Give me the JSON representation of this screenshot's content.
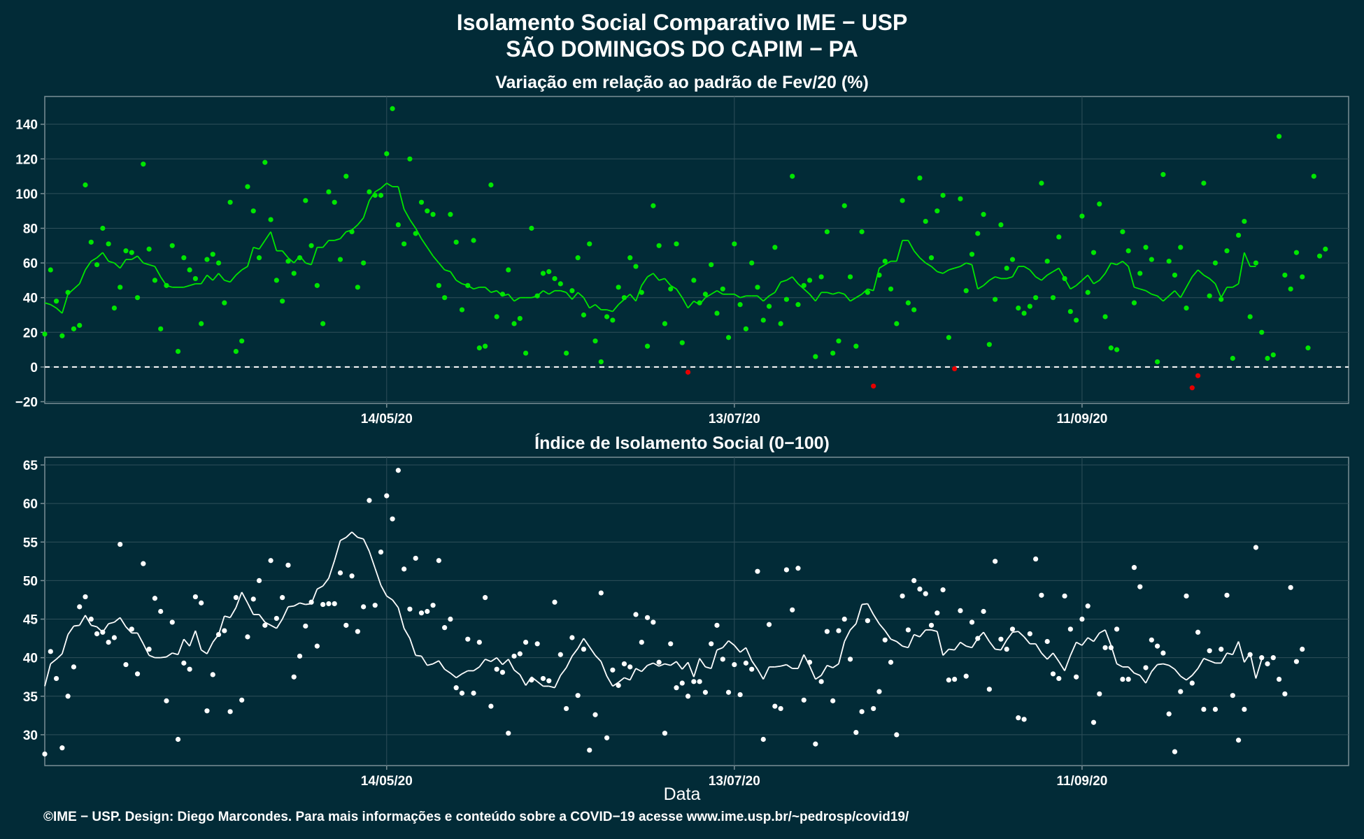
{
  "title_line1": "Isolamento Social Comparativo IME − USP",
  "title_line2": "SÃO DOMINGOS DO CAPIM − PA",
  "xlabel": "Data",
  "footer": "©IME − USP. Design: Diego Marcondes. Para mais informações e conteúdo sobre a COVID−19 acesse www.ime.usp.br/~pedrosp/covid19/",
  "colors": {
    "background": "#022b37",
    "positive_points": "#00e600",
    "negative_points": "#e60000",
    "index_points": "#ffffff",
    "grid": "#2f4f5a"
  },
  "chart_data": [
    {
      "type": "scatter",
      "title": "Variação em relação ao padrão de Fev/20 (%)",
      "x_tick_labels": [
        "14/05/20",
        "13/07/20",
        "11/09/20"
      ],
      "x_tick_day_index": [
        54,
        114,
        174
      ],
      "y_ticks": [
        -20,
        0,
        20,
        40,
        60,
        80,
        100,
        120,
        140
      ],
      "ylim": [
        -21,
        156
      ],
      "reference_line": 0,
      "x_range_days": [
        -5,
        220
      ],
      "points_day_index": [
        -5,
        -4,
        -3,
        -2,
        -1,
        0,
        1,
        2,
        3,
        4,
        5,
        6,
        7,
        8,
        9,
        10,
        11,
        12,
        13,
        14,
        15,
        16,
        17,
        18,
        19,
        20,
        21,
        22,
        23,
        24,
        25,
        26,
        27,
        28,
        29,
        30,
        31,
        32,
        33,
        34,
        35,
        36,
        37,
        38,
        39,
        40,
        41,
        42,
        43,
        44,
        45,
        46,
        47,
        48,
        49,
        50,
        51,
        52,
        53,
        54,
        55,
        56,
        57,
        58,
        59,
        60,
        61,
        62,
        63,
        64,
        65,
        66,
        67,
        68,
        69,
        70,
        71,
        72,
        73,
        74,
        75,
        76,
        77,
        78,
        79,
        80,
        81,
        82,
        83,
        84,
        85,
        86,
        87,
        88,
        89,
        90,
        91,
        92,
        93,
        94,
        95,
        96,
        97,
        98,
        99,
        100,
        101,
        102,
        103,
        104,
        105,
        106,
        107,
        108,
        109,
        110,
        111,
        112,
        113,
        114,
        115,
        116,
        117,
        118,
        119,
        120,
        121,
        122,
        123,
        124,
        125,
        126,
        127,
        128,
        129,
        130,
        131,
        132,
        133,
        134,
        135,
        136,
        137,
        138,
        139,
        140,
        141,
        142,
        143,
        144,
        145,
        146,
        147,
        148,
        149,
        150,
        151,
        152,
        153,
        154,
        155,
        156,
        157,
        158,
        159,
        160,
        161,
        162,
        163,
        164,
        165,
        166,
        167,
        168,
        169,
        170,
        171,
        172,
        173,
        174,
        175,
        176,
        177,
        178,
        179,
        180,
        181,
        182,
        183,
        184,
        185,
        186,
        187,
        188,
        189,
        190,
        191,
        192,
        193,
        194,
        195,
        196,
        197,
        198,
        199,
        200,
        201,
        202,
        203,
        204,
        205,
        206,
        207,
        208,
        209,
        210,
        211,
        212,
        213,
        214,
        215,
        216,
        217,
        218,
        219,
        220
      ],
      "values": [
        19,
        56,
        38,
        18,
        43,
        22,
        24,
        105,
        72,
        59,
        80,
        71,
        34,
        46,
        67,
        66,
        40,
        117,
        68,
        50,
        22,
        47,
        70,
        9,
        63,
        56,
        51,
        25,
        62,
        65,
        60,
        37,
        95,
        9,
        15,
        104,
        90,
        63,
        118,
        85,
        50,
        38,
        61,
        54,
        63,
        96,
        70,
        47,
        25,
        101,
        95,
        62,
        110,
        78,
        46,
        60,
        101,
        99,
        99,
        123,
        149,
        82,
        71,
        120,
        77,
        95,
        90,
        88,
        47,
        40,
        88,
        72,
        33,
        47,
        73,
        11,
        12,
        105,
        29,
        42,
        56,
        25,
        28,
        8,
        80,
        41,
        54,
        55,
        51,
        48,
        8,
        44,
        63,
        30,
        71,
        15,
        3,
        29,
        27,
        46,
        40,
        63,
        58,
        43,
        12,
        93,
        70,
        25,
        45,
        71,
        14,
        -3,
        50,
        37,
        42,
        59,
        31,
        45,
        17,
        71,
        36,
        22,
        60,
        46,
        27,
        35,
        69,
        25,
        39,
        110,
        36,
        47,
        50,
        6,
        52,
        78,
        8,
        15,
        93,
        52,
        12,
        78,
        43,
        -11,
        53,
        61,
        45,
        25,
        96,
        37,
        33,
        109,
        84,
        63,
        90,
        99,
        17,
        -1,
        97,
        44,
        65,
        77,
        88,
        13,
        39,
        82,
        57,
        62,
        34,
        31,
        35,
        40,
        106,
        61,
        40,
        75,
        51,
        32,
        27,
        87,
        43,
        66,
        94,
        29,
        11,
        10,
        78,
        67,
        37,
        54,
        69,
        62,
        3,
        111,
        61,
        53,
        69,
        34,
        -12,
        -5,
        106,
        41,
        60,
        39,
        67,
        5,
        76,
        84,
        29,
        60,
        20,
        5,
        7,
        133,
        53,
        45,
        66,
        52,
        11,
        110,
        64,
        68
      ],
      "moving_average": [
        37,
        36,
        34,
        31,
        42,
        45,
        48,
        56,
        61,
        63,
        66,
        61,
        60,
        57,
        62,
        62,
        64,
        60,
        59,
        58,
        52,
        47,
        46,
        46,
        46,
        47,
        48,
        48,
        53,
        50,
        54,
        50,
        49,
        53,
        56,
        58,
        69,
        68,
        73,
        78,
        67,
        67,
        63,
        60,
        64,
        60,
        59,
        69,
        69,
        73,
        73,
        74,
        78,
        79,
        82,
        86,
        96,
        101,
        103,
        106,
        104,
        104,
        91,
        85,
        80,
        74,
        69,
        64,
        60,
        56,
        55,
        50,
        48,
        47,
        45,
        46,
        46,
        43,
        44,
        41,
        42,
        38,
        40,
        40,
        40,
        41,
        44,
        42,
        44,
        44,
        43,
        39,
        43,
        40,
        34,
        36,
        33,
        33,
        32,
        36,
        39,
        42,
        38,
        47,
        52,
        54,
        50,
        51,
        47,
        45,
        40,
        34,
        38,
        36,
        40,
        42,
        44,
        42,
        42,
        42,
        40,
        41,
        41,
        41,
        38,
        41,
        43,
        49,
        50,
        52,
        48,
        45,
        42,
        38,
        43,
        43,
        42,
        43,
        42,
        38,
        40,
        42,
        45,
        44,
        57,
        59,
        61,
        61,
        73,
        73,
        67,
        63,
        60,
        58,
        55,
        54,
        56,
        57,
        58,
        60,
        59,
        45,
        47,
        50,
        52,
        51,
        51,
        52,
        58,
        58,
        56,
        52,
        50,
        53,
        55,
        57,
        51,
        45,
        47,
        50,
        53,
        48,
        50,
        54,
        60,
        59,
        61,
        58,
        46,
        45,
        44,
        42,
        41,
        38,
        41,
        44,
        40,
        46,
        52,
        56,
        53,
        51,
        48,
        40,
        46,
        46,
        48,
        66,
        58,
        58
      ]
    },
    {
      "type": "scatter",
      "title": "Índice de Isolamento Social (0−100)",
      "x_tick_labels": [
        "14/05/20",
        "13/07/20",
        "11/09/20"
      ],
      "x_tick_day_index": [
        54,
        114,
        174
      ],
      "y_ticks": [
        30,
        35,
        40,
        45,
        50,
        55,
        60,
        65
      ],
      "ylim": [
        26,
        66
      ],
      "x_range_days": [
        -5,
        220
      ],
      "points_day_index": [
        -5,
        -4,
        -3,
        -2,
        -1,
        0,
        1,
        2,
        3,
        4,
        5,
        6,
        7,
        8,
        9,
        10,
        11,
        12,
        13,
        14,
        15,
        16,
        17,
        18,
        19,
        20,
        21,
        22,
        23,
        24,
        25,
        26,
        27,
        28,
        29,
        30,
        31,
        32,
        33,
        34,
        35,
        36,
        37,
        38,
        39,
        40,
        41,
        42,
        43,
        44,
        45,
        46,
        47,
        48,
        49,
        50,
        51,
        52,
        53,
        54,
        55,
        56,
        57,
        58,
        59,
        60,
        61,
        62,
        63,
        64,
        65,
        66,
        67,
        68,
        69,
        70,
        71,
        72,
        73,
        74,
        75,
        76,
        77,
        78,
        79,
        80,
        81,
        82,
        83,
        84,
        85,
        86,
        87,
        88,
        89,
        90,
        91,
        92,
        93,
        94,
        95,
        96,
        97,
        98,
        99,
        100,
        101,
        102,
        103,
        104,
        105,
        106,
        107,
        108,
        109,
        110,
        111,
        112,
        113,
        114,
        115,
        116,
        117,
        118,
        119,
        120,
        121,
        122,
        123,
        124,
        125,
        126,
        127,
        128,
        129,
        130,
        131,
        132,
        133,
        134,
        135,
        136,
        137,
        138,
        139,
        140,
        141,
        142,
        143,
        144,
        145,
        146,
        147,
        148,
        149,
        150,
        151,
        152,
        153,
        154,
        155,
        156,
        157,
        158,
        159,
        160,
        161,
        162,
        163,
        164,
        165,
        166,
        167,
        168,
        169,
        170,
        171,
        172,
        173,
        174,
        175,
        176,
        177,
        178,
        179,
        180,
        181,
        182,
        183,
        184,
        185,
        186,
        187,
        188,
        189,
        190,
        191,
        192,
        193,
        194,
        195,
        196,
        197,
        198,
        199,
        200,
        201,
        202,
        203,
        204,
        205,
        206,
        207,
        208,
        209,
        210,
        211,
        212,
        213,
        214,
        215,
        216,
        217,
        218,
        219,
        220
      ],
      "values": [
        27.5,
        40.8,
        37.3,
        28.3,
        35.0,
        38.8,
        46.6,
        47.9,
        45.0,
        43.1,
        43.3,
        42.0,
        42.6,
        54.7,
        39.1,
        43.7,
        37.9,
        52.2,
        41.1,
        47.7,
        46.0,
        34.4,
        44.6,
        29.4,
        39.3,
        38.5,
        47.9,
        47.1,
        33.1,
        37.8,
        43.0,
        43.5,
        33.0,
        47.8,
        34.5,
        42.7,
        47.6,
        50.0,
        44.2,
        52.6,
        45.1,
        47.8,
        52.0,
        37.5,
        40.2,
        44.1,
        47.2,
        41.5,
        46.9,
        47.0,
        47.0,
        51.0,
        44.2,
        50.6,
        43.4,
        46.6,
        60.4,
        46.8,
        53.7,
        61.0,
        58.0,
        64.3,
        51.5,
        46.3,
        52.9,
        45.8,
        46.0,
        46.8,
        52.6,
        43.9,
        45.0,
        36.1,
        35.4,
        42.4,
        35.4,
        42.0,
        47.8,
        33.7,
        38.5,
        38.1,
        30.2,
        40.2,
        40.5,
        42.0,
        37.1,
        41.8,
        37.3,
        37.0,
        47.2,
        40.4,
        33.4,
        42.6,
        35.1,
        41.1,
        28.0,
        32.6,
        48.4,
        29.6,
        38.4,
        36.4,
        39.2,
        38.8,
        45.6,
        42.0,
        45.2,
        44.6,
        39.4,
        30.2,
        41.8,
        36.1,
        36.7,
        35.0,
        36.9,
        36.9,
        35.5,
        41.8,
        44.2,
        39.8,
        35.5,
        39.1,
        35.2,
        39.3,
        38.5,
        51.2,
        29.4,
        44.3,
        33.7,
        33.4,
        51.4,
        46.2,
        51.6,
        34.5,
        39.4,
        28.8,
        36.9,
        43.4,
        34.4,
        43.5,
        45.0,
        39.8,
        30.3,
        33.0,
        44.8,
        33.4,
        35.6,
        42.3,
        39.4,
        30.0,
        48.0,
        43.6,
        50.0,
        48.9,
        48.3,
        44.2,
        45.8,
        48.8,
        37.1,
        37.2,
        46.1,
        37.6,
        44.6,
        42.5,
        46.0,
        35.9,
        52.5,
        42.4,
        41.1,
        43.7,
        32.2,
        32.0,
        43.1,
        52.8,
        48.1,
        42.1,
        37.9,
        37.3,
        48.0,
        43.7,
        37.5,
        45.0,
        46.7,
        31.6,
        35.3,
        41.3,
        41.3,
        43.7,
        37.2,
        37.2,
        51.7,
        49.2,
        38.7,
        42.3,
        41.5,
        40.6,
        32.7,
        27.8,
        35.6,
        48.0,
        36.7,
        43.3,
        33.3,
        40.9,
        33.3,
        41.1,
        48.1,
        35.1,
        29.3,
        33.3,
        40.4,
        54.3,
        40.0,
        39.2,
        40.0,
        37.2,
        35.3,
        49.1,
        39.5,
        41.1
      ],
      "moving_average": [
        36.3,
        39.2,
        39.8,
        40.5,
        43.0,
        44.1,
        44.2,
        45.5,
        44.2,
        44.0,
        43.3,
        44.4,
        44.6,
        45.2,
        44.0,
        43.2,
        43.2,
        41.8,
        40.3,
        40.0,
        40.0,
        40.1,
        40.6,
        40.4,
        42.4,
        41.5,
        43.5,
        41.0,
        40.5,
        42.0,
        43.0,
        45.4,
        45.2,
        46.5,
        48.5,
        47.1,
        45.6,
        45.6,
        44.6,
        44.2,
        43.8,
        45.0,
        46.6,
        46.7,
        47.1,
        46.9,
        47.0,
        48.9,
        49.3,
        50.3,
        52.6,
        55.2,
        55.6,
        56.3,
        55.6,
        55.4,
        53.8,
        51.6,
        49.4,
        48.0,
        47.5,
        46.5,
        43.8,
        42.5,
        40.3,
        40.2,
        39.0,
        39.2,
        39.6,
        38.5,
        38.0,
        37.4,
        37.9,
        38.3,
        38.3,
        38.8,
        39.8,
        39.5,
        40.0,
        39.1,
        39.8,
        38.4,
        37.8,
        36.4,
        37.5,
        36.9,
        36.3,
        36.3,
        36.1,
        37.7,
        38.7,
        40.2,
        41.2,
        42.5,
        41.4,
        40.3,
        39.5,
        37.6,
        36.3,
        36.8,
        37.4,
        37.1,
        38.6,
        38.2,
        39.0,
        39.3,
        38.9,
        39.2,
        39.0,
        39.5,
        38.5,
        39.4,
        37.5,
        39.9,
        38.8,
        38.6,
        41.0,
        41.3,
        42.2,
        41.6,
        40.7,
        41.3,
        39.6,
        38.5,
        37.2,
        38.8,
        38.8,
        38.9,
        39.1,
        38.6,
        38.6,
        40.4,
        38.9,
        37.2,
        37.7,
        39.0,
        38.7,
        39.2,
        42.1,
        43.6,
        44.4,
        46.9,
        47.0,
        45.6,
        44.4,
        43.5,
        42.4,
        42.1,
        41.5,
        41.3,
        43.0,
        42.7,
        43.6,
        43.6,
        43.4,
        40.3,
        41.1,
        41.0,
        42.0,
        41.5,
        41.3,
        42.5,
        43.3,
        42.1,
        41.1,
        41.0,
        42.3,
        43.3,
        43.4,
        42.7,
        41.8,
        41.8,
        40.6,
        39.8,
        40.6,
        39.5,
        38.3,
        40.3,
        42.0,
        41.6,
        42.6,
        42.1,
        43.2,
        43.6,
        41.6,
        39.2,
        38.8,
        38.8,
        38.0,
        37.7,
        36.7,
        38.2,
        39.1,
        39.2,
        39.0,
        38.5,
        37.6,
        37.1,
        37.7,
        38.6,
        39.9,
        39.6,
        39.3,
        39.3,
        40.6,
        40.4,
        42.1,
        39.4,
        40.6,
        37.3,
        39.8
      ]
    }
  ]
}
